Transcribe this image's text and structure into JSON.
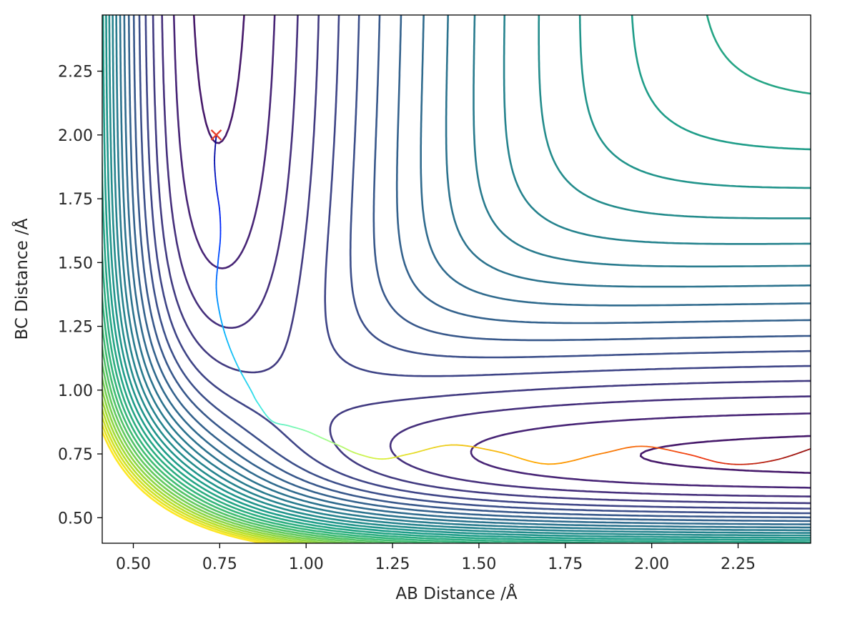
{
  "chart_data": {
    "type": "contour",
    "title": "",
    "xlabel": "AB Distance /Å",
    "ylabel": "BC Distance /Å",
    "xlim": [
      0.41,
      2.46
    ],
    "ylim": [
      0.4,
      2.47
    ],
    "xticks": [
      0.5,
      0.75,
      1.0,
      1.25,
      1.5,
      1.75,
      2.0,
      2.25
    ],
    "xtick_labels": [
      "0.50",
      "0.75",
      "1.00",
      "1.25",
      "1.50",
      "1.75",
      "2.00",
      "2.25"
    ],
    "yticks": [
      0.5,
      0.75,
      1.0,
      1.25,
      1.5,
      1.75,
      2.0,
      2.25
    ],
    "ytick_labels": [
      "0.50",
      "0.75",
      "1.00",
      "1.25",
      "1.50",
      "1.75",
      "2.00",
      "2.25"
    ],
    "grid": false,
    "colormap": "viridis",
    "start_marker": {
      "x": 0.74,
      "y": 2.0,
      "symbol": "x",
      "color": "#e8412c"
    },
    "trajectory": {
      "colormap": "jet",
      "points": [
        [
          0.74,
          2.0
        ],
        [
          0.735,
          1.9
        ],
        [
          0.74,
          1.8
        ],
        [
          0.75,
          1.7
        ],
        [
          0.752,
          1.6
        ],
        [
          0.745,
          1.5
        ],
        [
          0.74,
          1.4
        ],
        [
          0.75,
          1.3
        ],
        [
          0.77,
          1.2
        ],
        [
          0.8,
          1.1
        ],
        [
          0.84,
          1.0
        ],
        [
          0.86,
          0.95
        ],
        [
          0.9,
          0.88
        ],
        [
          0.95,
          0.86
        ],
        [
          1.0,
          0.84
        ],
        [
          1.05,
          0.81
        ],
        [
          1.1,
          0.78
        ],
        [
          1.15,
          0.75
        ],
        [
          1.22,
          0.73
        ],
        [
          1.3,
          0.75
        ],
        [
          1.42,
          0.785
        ],
        [
          1.55,
          0.76
        ],
        [
          1.7,
          0.71
        ],
        [
          1.85,
          0.75
        ],
        [
          1.97,
          0.78
        ],
        [
          2.1,
          0.75
        ],
        [
          2.2,
          0.715
        ],
        [
          2.28,
          0.71
        ],
        [
          2.37,
          0.73
        ],
        [
          2.46,
          0.77
        ]
      ]
    }
  }
}
